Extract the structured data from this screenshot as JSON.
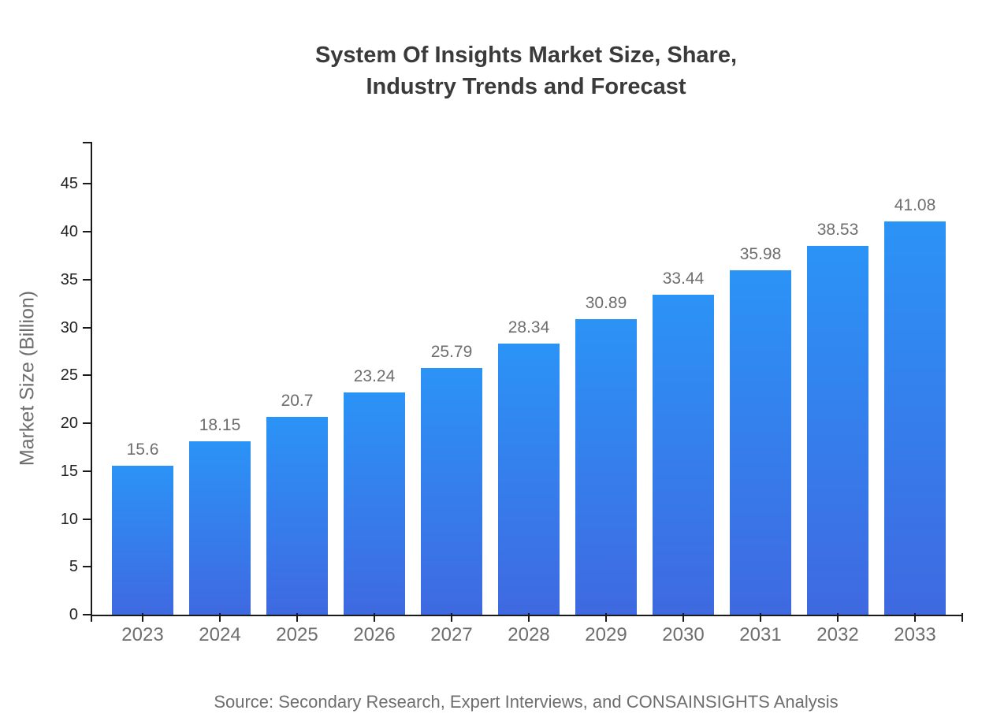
{
  "header": {
    "title_line1": "System Of Insights Market Size, Share,",
    "title_line2": "Industry Trends and Forecast"
  },
  "axes": {
    "y_title": "Market Size (Billion)"
  },
  "footer": {
    "source": "Source: Secondary Research, Expert Interviews, and CONSAINSIGHTS Analysis"
  },
  "colors": {
    "bar_top": "#2b93f6",
    "bar_bottom": "#3f69e0",
    "axis": "#1a1a1a",
    "tick_label": "#222222",
    "category_label": "#6e6e6e",
    "value_label": "#6e6e6e",
    "muted_text": "#6e6e6e",
    "title_text": "#3a3a3a"
  },
  "chart_data": {
    "type": "bar",
    "title": "System Of Insights Market Size, Share, Industry Trends and Forecast",
    "xlabel": "",
    "ylabel": "Market Size (Billion)",
    "categories": [
      "2023",
      "2024",
      "2025",
      "2026",
      "2027",
      "2028",
      "2029",
      "2030",
      "2031",
      "2032",
      "2033"
    ],
    "values": [
      15.6,
      18.15,
      20.7,
      23.24,
      25.79,
      28.34,
      30.89,
      33.44,
      35.98,
      38.53,
      41.08
    ],
    "value_labels": [
      "15.6",
      "18.15",
      "20.7",
      "23.24",
      "25.79",
      "28.34",
      "30.89",
      "33.44",
      "35.98",
      "38.53",
      "41.08"
    ],
    "yticks": [
      0,
      5,
      10,
      15,
      20,
      25,
      30,
      35,
      40,
      45
    ],
    "ylim": [
      0,
      49.4
    ],
    "grid": false,
    "legend": false,
    "annotation": "Source: Secondary Research, Expert Interviews, and CONSAINSIGHTS Analysis"
  }
}
